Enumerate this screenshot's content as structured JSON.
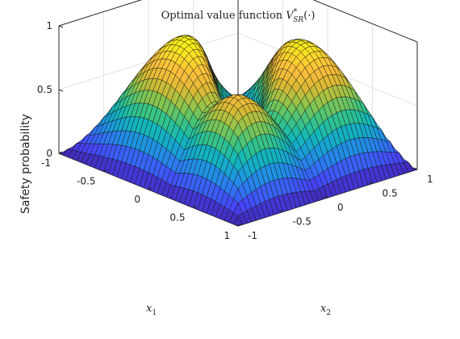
{
  "chart_data": {
    "type": "surface",
    "title": {
      "prefix": "Optimal value function ",
      "symbol": "V",
      "superscript": "*",
      "subscript": "SR",
      "suffix": "(·)"
    },
    "zlabel": "Safety probability",
    "xlabel": {
      "symbol": "x",
      "subscript": "1"
    },
    "ylabel": {
      "symbol": "x",
      "subscript": "2"
    },
    "xlim": [
      -1,
      1
    ],
    "ylim": [
      -1,
      1
    ],
    "zlim": [
      0,
      1
    ],
    "x_ticks": [
      "-1",
      "-0.5",
      "0",
      "0.5",
      "1"
    ],
    "y_ticks": [
      "-1",
      "-0.5",
      "0",
      "0.5",
      "1"
    ],
    "z_ticks": [
      "0",
      "0.5",
      "1"
    ],
    "grid": true,
    "colormap": [
      "#3e26a8",
      "#4743f8",
      "#2f74f4",
      "#1a9cdb",
      "#12b9b7",
      "#3dc47f",
      "#8fc44a",
      "#d9b933",
      "#fdbd3c",
      "#f9df26",
      "#f9fb0e"
    ],
    "view": "isometric",
    "samples": [
      {
        "x1": 0,
        "x2": 0,
        "value": 0.28
      },
      {
        "x1": -0.5,
        "x2": -0.5,
        "value": 1.0
      },
      {
        "x1": 0.5,
        "x2": 0.5,
        "value": 0.94
      },
      {
        "x1": 0.5,
        "x2": -0.5,
        "value": 0.79
      },
      {
        "x1": -0.5,
        "x2": 0.5,
        "value": 0.72
      },
      {
        "x1": 1,
        "x2": -1,
        "value": 0.07
      },
      {
        "x1": -1,
        "x2": 1,
        "value": 0.0
      }
    ]
  }
}
